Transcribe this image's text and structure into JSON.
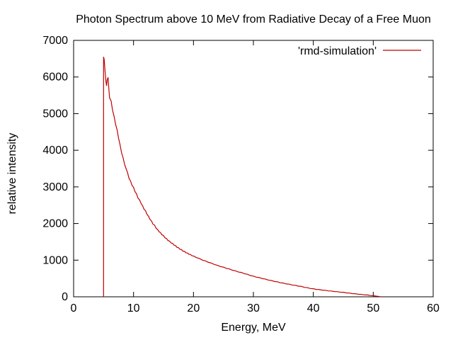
{
  "chart_data": {
    "type": "line",
    "title": "Photon Spectrum above 10 MeV from Radiative Decay of a Free Muon",
    "xlabel": "Energy, MeV",
    "ylabel": "relative intensity",
    "xlim": [
      0,
      60
    ],
    "ylim": [
      0,
      7000
    ],
    "xticks": [
      0,
      10,
      20,
      30,
      40,
      50,
      60
    ],
    "yticks": [
      0,
      1000,
      2000,
      3000,
      4000,
      5000,
      6000,
      7000
    ],
    "grid": false,
    "legend_position": "top-right-inside",
    "axis_color": "#000000",
    "background_color": "#ffffff",
    "series": [
      {
        "name": "'rmd-simulation'",
        "color": "#c00000",
        "points": [
          [
            5.0,
            0
          ],
          [
            5.0,
            6550
          ],
          [
            5.1,
            6480
          ],
          [
            5.25,
            6150
          ],
          [
            5.4,
            5870
          ],
          [
            5.5,
            5760
          ],
          [
            5.6,
            5920
          ],
          [
            5.75,
            5990
          ],
          [
            5.9,
            5630
          ],
          [
            6.0,
            5430
          ],
          [
            6.25,
            5350
          ],
          [
            6.5,
            5090
          ],
          [
            6.75,
            4930
          ],
          [
            7.0,
            4710
          ],
          [
            7.25,
            4560
          ],
          [
            7.5,
            4330
          ],
          [
            7.75,
            4150
          ],
          [
            8.0,
            3930
          ],
          [
            8.25,
            3800
          ],
          [
            8.5,
            3620
          ],
          [
            8.75,
            3500
          ],
          [
            9.0,
            3390
          ],
          [
            9.25,
            3230
          ],
          [
            9.5,
            3160
          ],
          [
            9.75,
            3040
          ],
          [
            10.0,
            2990
          ],
          [
            10.25,
            2870
          ],
          [
            10.5,
            2810
          ],
          [
            10.75,
            2690
          ],
          [
            11.0,
            2650
          ],
          [
            11.25,
            2550
          ],
          [
            11.5,
            2490
          ],
          [
            11.75,
            2390
          ],
          [
            12.0,
            2350
          ],
          [
            12.25,
            2250
          ],
          [
            12.5,
            2200
          ],
          [
            12.75,
            2110
          ],
          [
            13.0,
            2070
          ],
          [
            13.25,
            1980
          ],
          [
            13.5,
            1960
          ],
          [
            13.75,
            1870
          ],
          [
            14.0,
            1840
          ],
          [
            14.25,
            1780
          ],
          [
            14.5,
            1750
          ],
          [
            14.75,
            1690
          ],
          [
            15.0,
            1670
          ],
          [
            15.25,
            1610
          ],
          [
            15.5,
            1590
          ],
          [
            15.75,
            1535
          ],
          [
            16.0,
            1520
          ],
          [
            16.25,
            1470
          ],
          [
            16.5,
            1460
          ],
          [
            16.75,
            1410
          ],
          [
            17.0,
            1400
          ],
          [
            17.25,
            1350
          ],
          [
            17.5,
            1340
          ],
          [
            17.75,
            1295
          ],
          [
            18.0,
            1290
          ],
          [
            18.25,
            1245
          ],
          [
            18.5,
            1240
          ],
          [
            18.75,
            1200
          ],
          [
            19.0,
            1195
          ],
          [
            19.25,
            1160
          ],
          [
            19.5,
            1155
          ],
          [
            19.75,
            1120
          ],
          [
            20.0,
            1115
          ],
          [
            20.5,
            1070
          ],
          [
            21.0,
            1045
          ],
          [
            21.5,
            1000
          ],
          [
            22.0,
            980
          ],
          [
            22.5,
            940
          ],
          [
            23.0,
            920
          ],
          [
            23.5,
            880
          ],
          [
            24.0,
            860
          ],
          [
            24.5,
            825
          ],
          [
            25.0,
            810
          ],
          [
            25.5,
            775
          ],
          [
            26.0,
            760
          ],
          [
            26.5,
            725
          ],
          [
            27.0,
            710
          ],
          [
            27.5,
            675
          ],
          [
            28.0,
            665
          ],
          [
            28.5,
            630
          ],
          [
            29.0,
            615
          ],
          [
            29.5,
            580
          ],
          [
            30.0,
            565
          ],
          [
            30.5,
            535
          ],
          [
            31.0,
            525
          ],
          [
            31.5,
            495
          ],
          [
            32.0,
            485
          ],
          [
            32.5,
            455
          ],
          [
            33.0,
            445
          ],
          [
            33.5,
            418
          ],
          [
            34.0,
            410
          ],
          [
            34.5,
            383
          ],
          [
            35.0,
            375
          ],
          [
            35.5,
            350
          ],
          [
            36.0,
            345
          ],
          [
            36.5,
            320
          ],
          [
            37.0,
            315
          ],
          [
            37.5,
            290
          ],
          [
            38.0,
            285
          ],
          [
            38.5,
            258
          ],
          [
            39.0,
            250
          ],
          [
            39.5,
            226
          ],
          [
            40.0,
            220
          ],
          [
            40.5,
            201
          ],
          [
            41.0,
            198
          ],
          [
            41.5,
            181
          ],
          [
            42.0,
            178
          ],
          [
            42.5,
            161
          ],
          [
            43.0,
            158
          ],
          [
            43.5,
            143
          ],
          [
            44.0,
            141
          ],
          [
            44.5,
            125
          ],
          [
            45.0,
            123
          ],
          [
            45.5,
            106
          ],
          [
            46.0,
            103
          ],
          [
            46.5,
            87
          ],
          [
            47.0,
            85
          ],
          [
            47.5,
            69
          ],
          [
            48.0,
            67
          ],
          [
            48.5,
            52
          ],
          [
            49.0,
            50
          ],
          [
            49.5,
            35
          ],
          [
            50.0,
            32
          ],
          [
            50.5,
            18
          ],
          [
            51.0,
            8
          ],
          [
            51.2,
            0
          ]
        ]
      }
    ]
  }
}
